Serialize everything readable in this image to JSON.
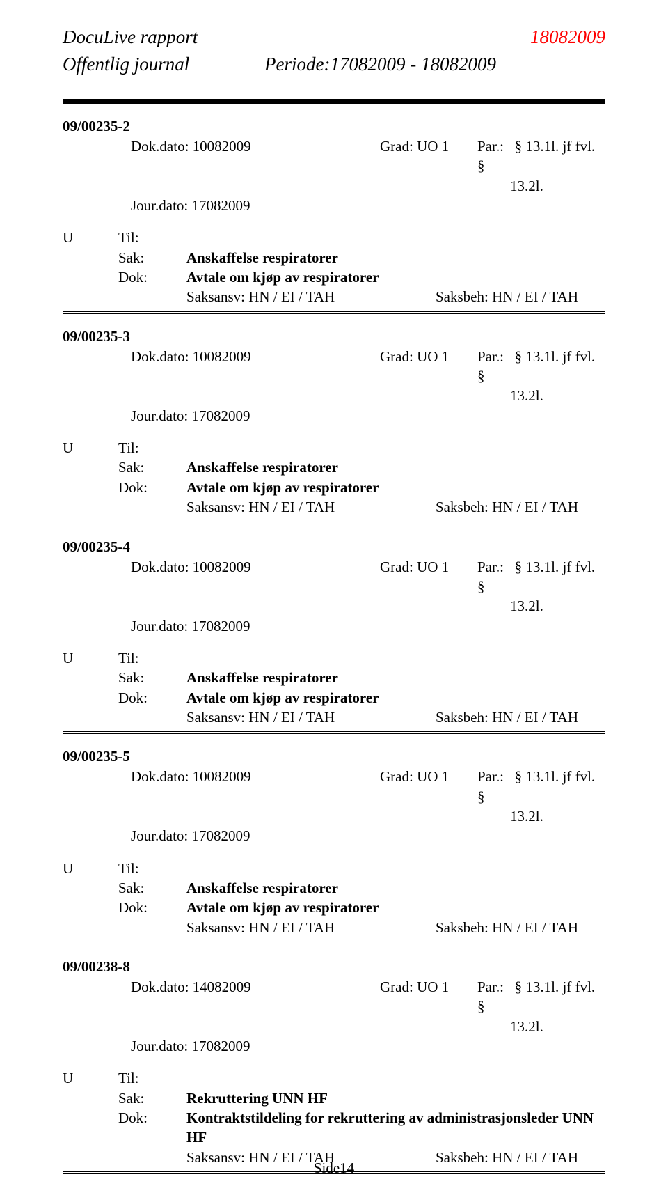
{
  "header": {
    "title": "DocuLive rapport",
    "date": "18082009",
    "subtitle": "Offentlig journal",
    "period": "Periode:17082009 - 18082009"
  },
  "labels": {
    "til": "Til:",
    "sak": "Sak:",
    "dok": "Dok:",
    "dok_dato": "Dok.dato:",
    "jour_dato": "Jour.dato:",
    "grad": "Grad:",
    "par": "Par.:",
    "saksansv": "Saksansv:",
    "saksbeh": "Saksbeh:"
  },
  "entries": [
    {
      "case_id": "09/00235-2",
      "dok_dato": "10082009",
      "grad": "UO 1",
      "par_line1": "§ 13.1l. jf fvl. §",
      "par_line2": "13.2l.",
      "jour_dato": "17082009",
      "direction": "U",
      "sak": "Anskaffelse respiratorer",
      "dok": "Avtale om kjøp av respiratorer",
      "saksansv": "HN / EI / TAH",
      "saksbeh": "HN / EI / TAH"
    },
    {
      "case_id": "09/00235-3",
      "dok_dato": "10082009",
      "grad": "UO 1",
      "par_line1": "§ 13.1l. jf fvl. §",
      "par_line2": "13.2l.",
      "jour_dato": "17082009",
      "direction": "U",
      "sak": "Anskaffelse respiratorer",
      "dok": "Avtale om kjøp av respiratorer",
      "saksansv": "HN / EI / TAH",
      "saksbeh": "HN / EI / TAH"
    },
    {
      "case_id": "09/00235-4",
      "dok_dato": "10082009",
      "grad": "UO 1",
      "par_line1": "§ 13.1l. jf fvl. §",
      "par_line2": "13.2l.",
      "jour_dato": "17082009",
      "direction": "U",
      "sak": "Anskaffelse respiratorer",
      "dok": "Avtale om kjøp av respiratorer",
      "saksansv": "HN / EI / TAH",
      "saksbeh": "HN / EI / TAH"
    },
    {
      "case_id": "09/00235-5",
      "dok_dato": "10082009",
      "grad": "UO 1",
      "par_line1": "§ 13.1l. jf fvl. §",
      "par_line2": "13.2l.",
      "jour_dato": "17082009",
      "direction": "U",
      "sak": "Anskaffelse respiratorer",
      "dok": "Avtale om kjøp av respiratorer",
      "saksansv": "HN / EI / TAH",
      "saksbeh": "HN / EI / TAH"
    },
    {
      "case_id": "09/00238-8",
      "dok_dato": "14082009",
      "grad": "UO 1",
      "par_line1": "§ 13.1l. jf fvl. §",
      "par_line2": "13.2l.",
      "jour_dato": "17082009",
      "direction": "U",
      "sak": "Rekruttering UNN HF",
      "dok": "Kontraktstildeling for rekruttering av administrasjonsleder UNN HF",
      "saksansv": "HN / EI / TAH",
      "saksbeh": "HN / EI / TAH"
    }
  ],
  "footer": {
    "page_label": "Side14"
  },
  "colors": {
    "text": "#000000",
    "accent": "#ff0000",
    "background": "#ffffff"
  },
  "fonts": {
    "family": "Times New Roman",
    "header_size_pt": 20,
    "body_size_pt": 16
  }
}
